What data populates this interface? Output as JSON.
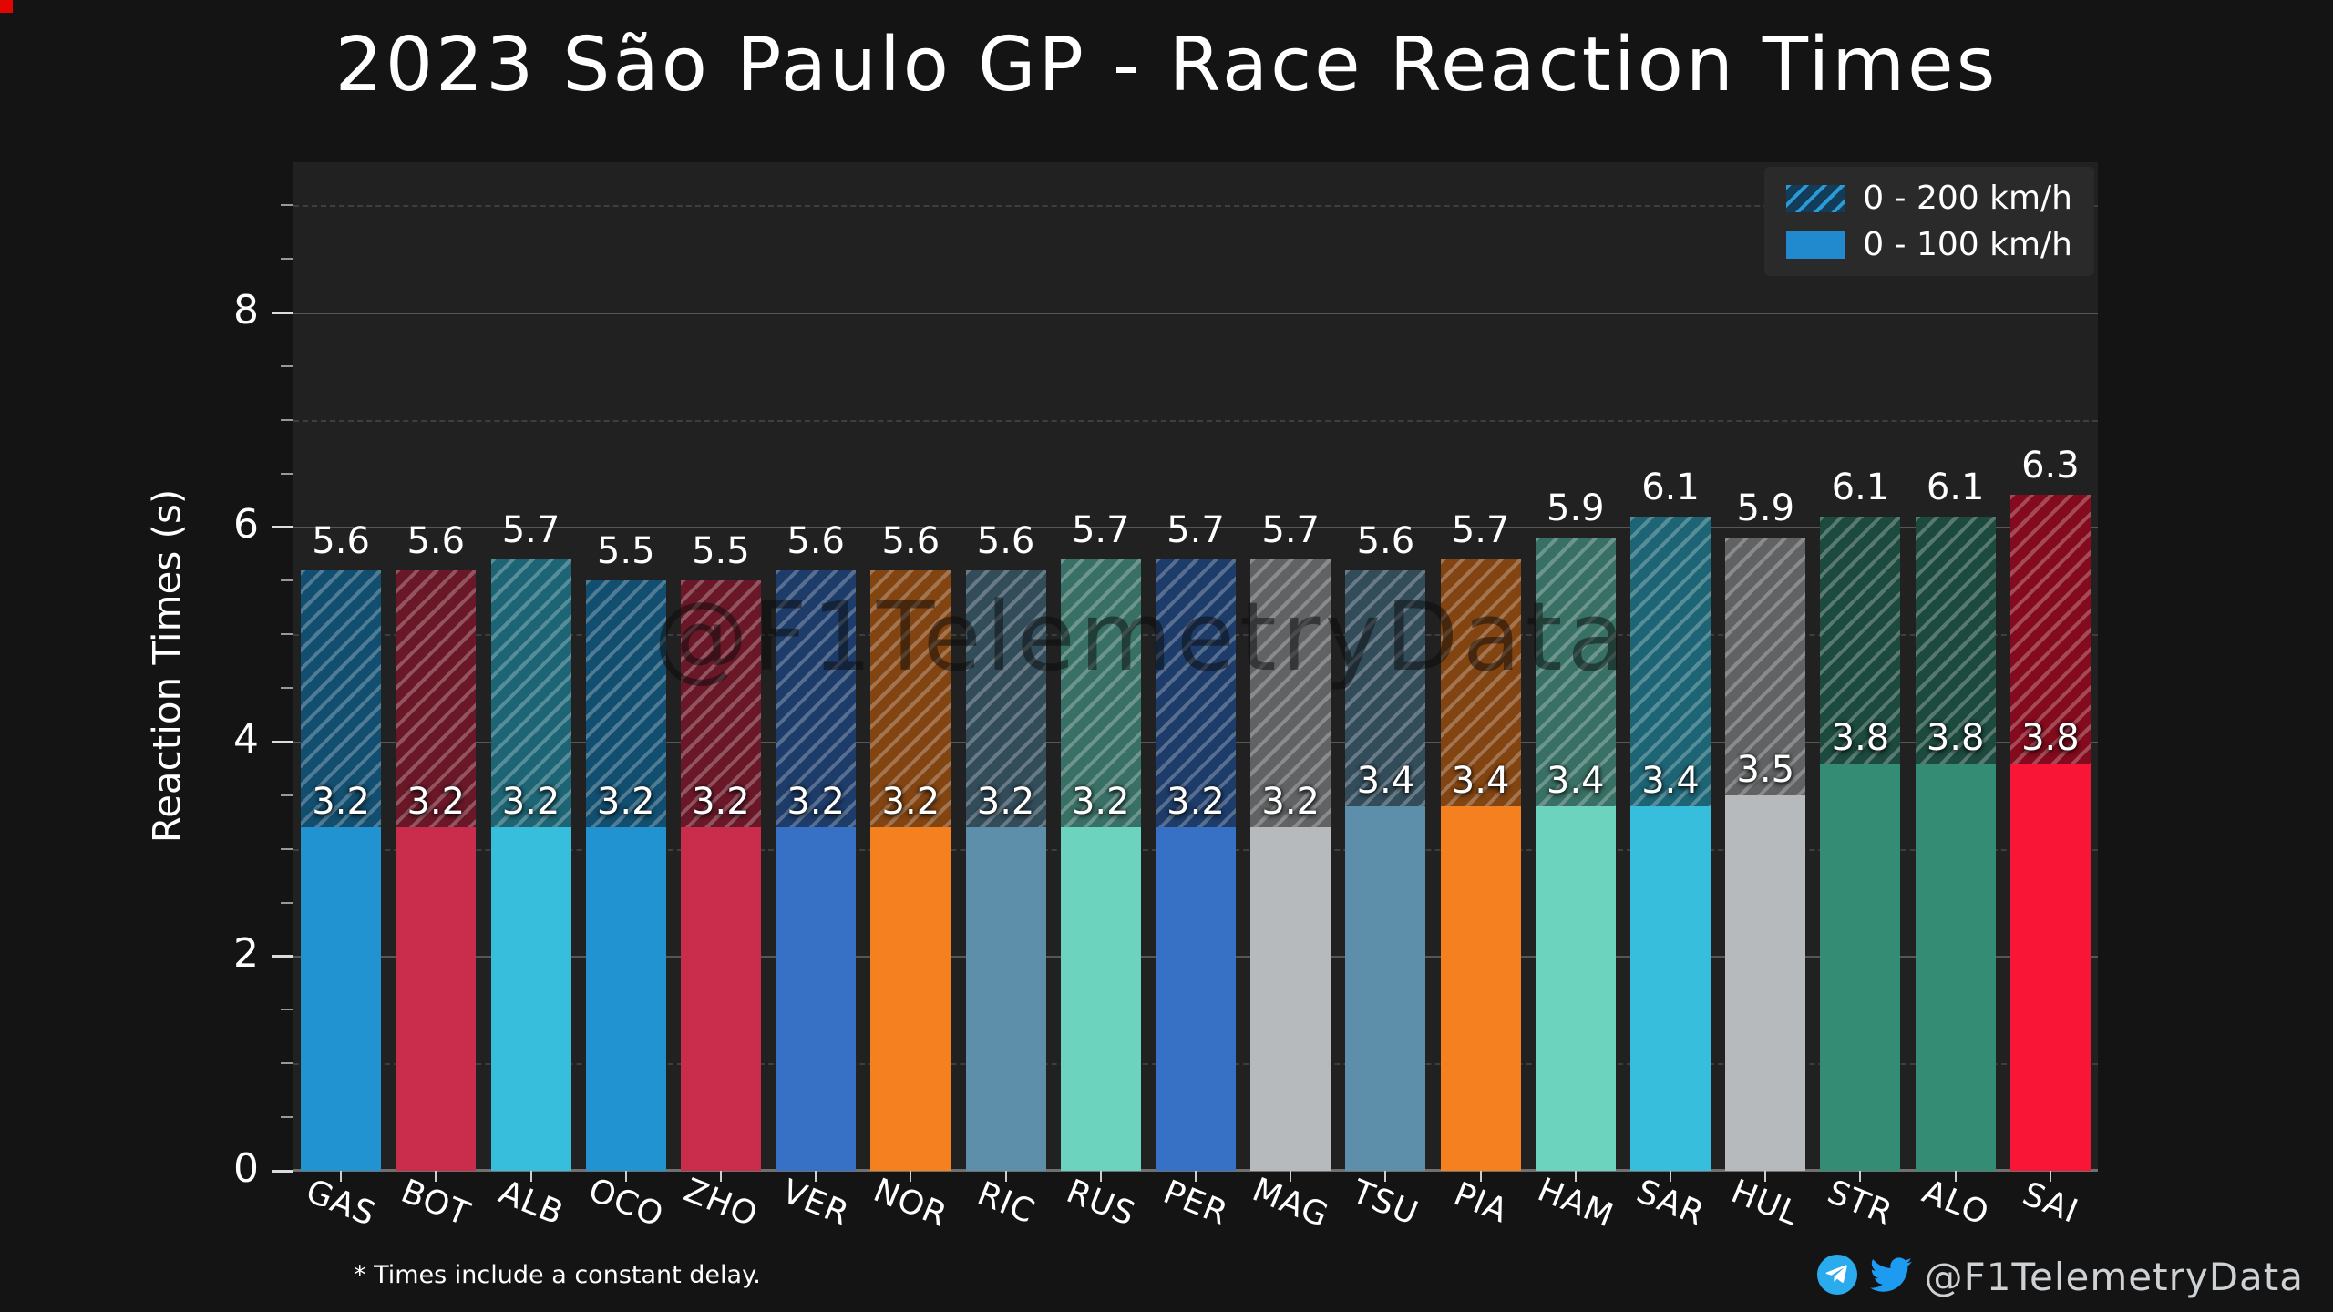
{
  "page": {
    "title": "2023 São Paulo GP - Race Reaction Times",
    "footnote": "* Times include a constant delay.",
    "watermark": "@F1TelemetryData",
    "social": {
      "handle": "@F1TelemetryData",
      "telegram_color": "#2AABEE",
      "twitter_color": "#1D9BF0"
    },
    "corner_marker_color": "#E10600",
    "background_color": "#141414",
    "plot_background_color": "#212121"
  },
  "chart_data": {
    "type": "bar",
    "title": "2023 São Paulo GP - Race Reaction Times",
    "ylabel": "Reaction Times (s)",
    "xlabel": "",
    "units": "seconds",
    "ylim": [
      0,
      9.4
    ],
    "yticks": [
      0,
      2,
      4,
      6,
      8
    ],
    "grid": {
      "major_lines": "solid at 2,4,6,8",
      "minor_lines": "dashed at 1,3,5,7,9"
    },
    "legend_position": "upper right",
    "categories": [
      "GAS",
      "BOT",
      "ALB",
      "OCO",
      "ZHO",
      "VER",
      "NOR",
      "RIC",
      "RUS",
      "PER",
      "MAG",
      "TSU",
      "PIA",
      "HAM",
      "SAR",
      "HUL",
      "STR",
      "ALO",
      "SAI"
    ],
    "series": [
      {
        "name": "0 - 200 km/h",
        "style": "hatched",
        "values": [
          5.6,
          5.6,
          5.7,
          5.5,
          5.5,
          5.6,
          5.6,
          5.6,
          5.7,
          5.7,
          5.7,
          5.6,
          5.7,
          5.9,
          6.1,
          5.9,
          6.1,
          6.1,
          6.3
        ]
      },
      {
        "name": "0 - 100 km/h",
        "style": "solid",
        "values": [
          3.2,
          3.2,
          3.2,
          3.2,
          3.2,
          3.2,
          3.2,
          3.2,
          3.2,
          3.2,
          3.2,
          3.4,
          3.4,
          3.4,
          3.4,
          3.5,
          3.8,
          3.8,
          3.8
        ]
      }
    ],
    "bar_colors": [
      "#2293D1",
      "#C92D4B",
      "#37BEDD",
      "#2293D1",
      "#C92D4B",
      "#3671C6",
      "#F58020",
      "#5E8FAA",
      "#6CD3BF",
      "#3671C6",
      "#B6BABD",
      "#5E8FAA",
      "#F58020",
      "#6CD3BF",
      "#37BEDD",
      "#B6BABD",
      "#358C75",
      "#358C75",
      "#F91536"
    ],
    "legend_swatch_colors": {
      "hatched_base": "#123C57",
      "hatched_stripe": "#2B9AD7",
      "solid": "#2189CD"
    }
  }
}
